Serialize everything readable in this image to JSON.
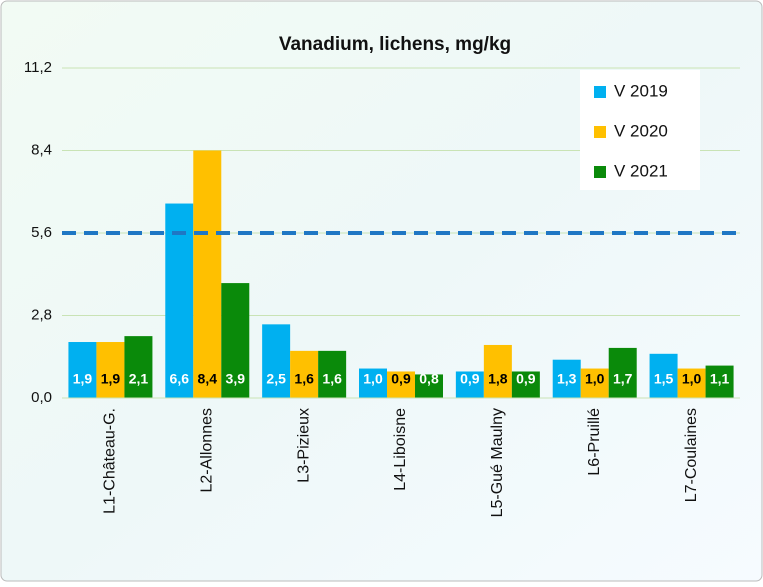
{
  "chart_data": {
    "type": "bar",
    "title": "Vanadium,  lichens, mg/kg",
    "categories": [
      "L1-Château-G.",
      "L2-Allonnes",
      "L3-Pizieux",
      "L4-Liboisne",
      "L5-Gué Maulny",
      "L6-Pruillé",
      "L7-Coulaines"
    ],
    "series": [
      {
        "name": "V 2019",
        "color": "#00b0f0",
        "values": [
          1.9,
          6.6,
          2.5,
          1.0,
          0.9,
          1.3,
          1.5
        ],
        "value_labels": [
          "1,9",
          "6,6",
          "2,5",
          "1,0",
          "0,9",
          "1,3",
          "1,5"
        ]
      },
      {
        "name": "V 2020",
        "color": "#ffc000",
        "values": [
          1.9,
          8.4,
          1.6,
          0.9,
          1.8,
          1.0,
          1.0
        ],
        "value_labels": [
          "1,9",
          "8,4",
          "1,6",
          "0,9",
          "1,8",
          "1,0",
          "1,0"
        ]
      },
      {
        "name": "V 2021",
        "color": "#0a8a0a",
        "values": [
          2.1,
          3.9,
          1.6,
          0.8,
          0.9,
          1.7,
          1.1
        ],
        "value_labels": [
          "2,1",
          "3,9",
          "1,6",
          "0,8",
          "0,9",
          "1,7",
          "1,1"
        ]
      }
    ],
    "ylim": [
      0,
      11.2
    ],
    "yticks": [
      {
        "value": 0,
        "label": "0,0"
      },
      {
        "value": 2.8,
        "label": "2,8"
      },
      {
        "value": 5.6,
        "label": "5,6"
      },
      {
        "value": 8.4,
        "label": "8,4"
      },
      {
        "value": 11.2,
        "label": "11,2"
      }
    ],
    "reference_line": 5.6,
    "reference_color": "#1f77c4",
    "grid": true,
    "legend": "upper right"
  }
}
